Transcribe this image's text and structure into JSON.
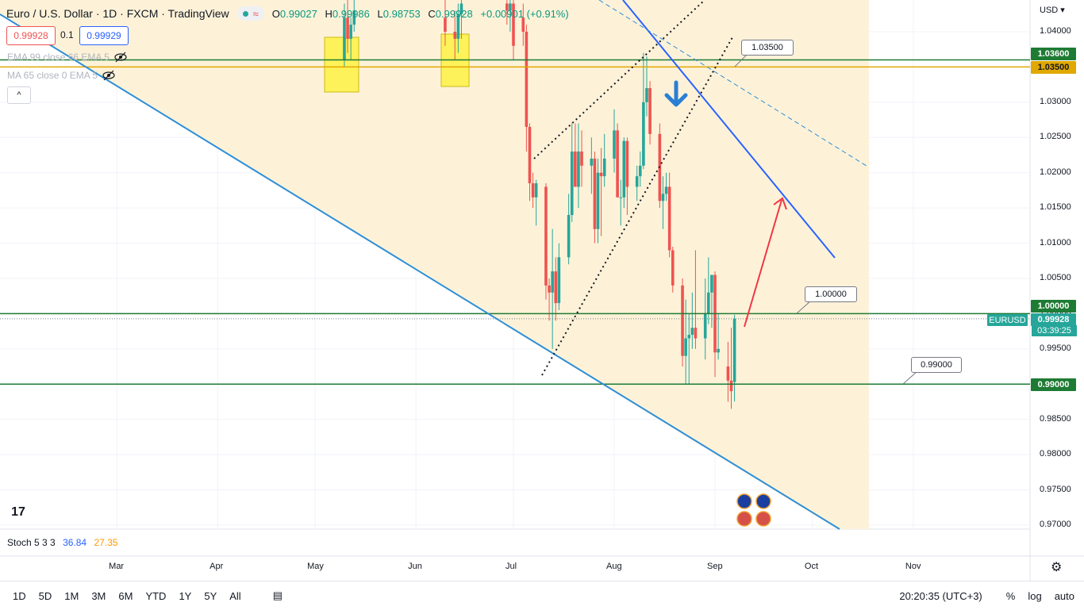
{
  "header": {
    "symbol": "Euro / U.S. Dollar · 1D · FXCM · TradingView",
    "wave_icon": "≈",
    "ohlc": {
      "o_label": "O",
      "o": "0.99027",
      "h_label": "H",
      "h": "0.99986",
      "l_label": "L",
      "l": "0.98753",
      "c_label": "C",
      "c": "0.99928",
      "change": "+0.00901 (+0.91%)"
    },
    "bid": "0.99928",
    "spread": "0.1",
    "ask": "0.99929"
  },
  "indicators": {
    "ema": "EMA 99 close 66 EMA 5",
    "ma": "MA 65 close 0 EMA 5",
    "stoch_label": "Stoch 5 3 3",
    "stoch_k": "36.84",
    "stoch_d": "27.35"
  },
  "colors": {
    "up": "#26a69a",
    "down": "#ef5350",
    "zone": "#fdf1d6",
    "blue_line": "#2e8fd6",
    "green_level": "#1e7b34",
    "gold_level": "#e0a800",
    "yellow_box": "#fff34d",
    "red_arrow": "#f23645"
  },
  "axis": {
    "currency": "USD",
    "time_labels": [
      "Mar",
      "Apr",
      "May",
      "Jun",
      "Jul",
      "Aug",
      "Sep",
      "Oct",
      "Nov"
    ],
    "price_labels": [
      "1.04000",
      "1.03500",
      "1.03000",
      "1.02500",
      "1.02000",
      "1.01500",
      "1.01000",
      "1.00500",
      "1.00000",
      "0.99500",
      "0.99000",
      "0.98500",
      "0.98000",
      "0.97500",
      "0.97000"
    ]
  },
  "price_tags": {
    "level_1036": "1.03600",
    "level_1035": "1.03500",
    "level_1000": "1.00000",
    "current": "0.99928",
    "level_099": "0.99000",
    "symbol_tag": "EURUSD",
    "countdown": "03:39:25"
  },
  "callouts": {
    "c1": "1.03500",
    "c2": "1.00000",
    "c3": "0.99000"
  },
  "bottom": {
    "timeframes": [
      "1D",
      "5D",
      "1M",
      "3M",
      "6M",
      "YTD",
      "1Y",
      "5Y",
      "All"
    ],
    "clock": "20:20:35 (UTC+3)",
    "pct": "%",
    "log": "log",
    "auto": "auto"
  },
  "chart_data": {
    "type": "candlestick",
    "title": "Euro / U.S. Dollar · 1D · FXCM · TradingView",
    "ylim": [
      0.97,
      1.042
    ],
    "candles": [
      {
        "t": "2022-05-10",
        "o": 1.036,
        "h": 1.044,
        "l": 1.035,
        "c": 1.042
      },
      {
        "t": "2022-05-11",
        "o": 1.042,
        "h": 1.0445,
        "l": 1.037,
        "c": 1.039
      },
      {
        "t": "2022-05-12",
        "o": 1.039,
        "h": 1.042,
        "l": 1.036,
        "c": 1.041
      },
      {
        "t": "2022-05-13",
        "o": 1.041,
        "h": 1.045,
        "l": 1.04,
        "c": 1.043
      },
      {
        "t": "2022-06-10",
        "o": 1.042,
        "h": 1.045,
        "l": 1.038,
        "c": 1.04
      },
      {
        "t": "2022-06-13",
        "o": 1.04,
        "h": 1.043,
        "l": 1.036,
        "c": 1.039
      },
      {
        "t": "2022-06-14",
        "o": 1.039,
        "h": 1.044,
        "l": 1.037,
        "c": 1.0425
      },
      {
        "t": "2022-06-15",
        "o": 1.0425,
        "h": 1.045,
        "l": 1.039,
        "c": 1.044
      },
      {
        "t": "2022-06-29",
        "o": 1.044,
        "h": 1.045,
        "l": 1.041,
        "c": 1.043
      },
      {
        "t": "2022-06-30",
        "o": 1.043,
        "h": 1.045,
        "l": 1.04,
        "c": 1.044
      },
      {
        "t": "2022-07-01",
        "o": 1.044,
        "h": 1.045,
        "l": 1.036,
        "c": 1.038
      },
      {
        "t": "2022-07-04",
        "o": 1.042,
        "h": 1.044,
        "l": 1.038,
        "c": 1.04
      },
      {
        "t": "2022-07-05",
        "o": 1.04,
        "h": 1.041,
        "l": 1.023,
        "c": 1.0265
      },
      {
        "t": "2022-07-06",
        "o": 1.0265,
        "h": 1.027,
        "l": 1.016,
        "c": 1.0185
      },
      {
        "t": "2022-07-07",
        "o": 1.0185,
        "h": 1.02,
        "l": 1.015,
        "c": 1.0165
      },
      {
        "t": "2022-07-08",
        "o": 1.0165,
        "h": 1.019,
        "l": 1.0125,
        "c": 1.0185
      },
      {
        "t": "2022-07-11",
        "o": 1.018,
        "h": 1.0185,
        "l": 1.002,
        "c": 1.004
      },
      {
        "t": "2022-07-12",
        "o": 1.004,
        "h": 1.005,
        "l": 0.999,
        "c": 1.003
      },
      {
        "t": "2022-07-13",
        "o": 1.003,
        "h": 1.012,
        "l": 0.995,
        "c": 1.006
      },
      {
        "t": "2022-07-14",
        "o": 1.006,
        "h": 1.008,
        "l": 0.999,
        "c": 1.0015
      },
      {
        "t": "2022-07-15",
        "o": 1.0015,
        "h": 1.01,
        "l": 1.0005,
        "c": 1.008
      },
      {
        "t": "2022-07-18",
        "o": 1.008,
        "h": 1.017,
        "l": 1.007,
        "c": 1.014
      },
      {
        "t": "2022-07-19",
        "o": 1.014,
        "h": 1.027,
        "l": 1.013,
        "c": 1.023
      },
      {
        "t": "2022-07-20",
        "o": 1.023,
        "h": 1.027,
        "l": 1.018,
        "c": 1.018
      },
      {
        "t": "2022-07-21",
        "o": 1.018,
        "h": 1.027,
        "l": 1.015,
        "c": 1.023
      },
      {
        "t": "2022-07-22",
        "o": 1.023,
        "h": 1.026,
        "l": 1.018,
        "c": 1.021
      },
      {
        "t": "2022-07-25",
        "o": 1.021,
        "h": 1.025,
        "l": 1.017,
        "c": 1.022
      },
      {
        "t": "2022-07-26",
        "o": 1.022,
        "h": 1.023,
        "l": 1.01,
        "c": 1.012
      },
      {
        "t": "2022-07-27",
        "o": 1.012,
        "h": 1.022,
        "l": 1.01,
        "c": 1.02
      },
      {
        "t": "2022-07-28",
        "o": 1.02,
        "h": 1.0235,
        "l": 1.011,
        "c": 1.0195
      },
      {
        "t": "2022-07-29",
        "o": 1.0195,
        "h": 1.0255,
        "l": 1.018,
        "c": 1.022
      },
      {
        "t": "2022-08-01",
        "o": 1.022,
        "h": 1.029,
        "l": 1.02,
        "c": 1.026
      },
      {
        "t": "2022-08-02",
        "o": 1.026,
        "h": 1.027,
        "l": 1.0165,
        "c": 1.0165
      },
      {
        "t": "2022-08-03",
        "o": 1.0165,
        "h": 1.019,
        "l": 1.0125,
        "c": 1.0165
      },
      {
        "t": "2022-08-04",
        "o": 1.0165,
        "h": 1.025,
        "l": 1.015,
        "c": 1.0245
      },
      {
        "t": "2022-08-05",
        "o": 1.0245,
        "h": 1.025,
        "l": 1.014,
        "c": 1.018
      },
      {
        "t": "2022-08-08",
        "o": 1.018,
        "h": 1.021,
        "l": 1.016,
        "c": 1.0195
      },
      {
        "t": "2022-08-09",
        "o": 1.0195,
        "h": 1.023,
        "l": 1.018,
        "c": 1.021
      },
      {
        "t": "2022-08-10",
        "o": 1.021,
        "h": 1.037,
        "l": 1.0205,
        "c": 1.03
      },
      {
        "t": "2022-08-11",
        "o": 1.03,
        "h": 1.0365,
        "l": 1.028,
        "c": 1.032
      },
      {
        "t": "2022-08-12",
        "o": 1.032,
        "h": 1.033,
        "l": 1.024,
        "c": 1.0255
      },
      {
        "t": "2022-08-15",
        "o": 1.0255,
        "h": 1.027,
        "l": 1.015,
        "c": 1.016
      },
      {
        "t": "2022-08-16",
        "o": 1.016,
        "h": 1.0195,
        "l": 1.012,
        "c": 1.017
      },
      {
        "t": "2022-08-17",
        "o": 1.017,
        "h": 1.02,
        "l": 1.016,
        "c": 1.018
      },
      {
        "t": "2022-08-18",
        "o": 1.018,
        "h": 1.02,
        "l": 1.008,
        "c": 1.009
      },
      {
        "t": "2022-08-19",
        "o": 1.009,
        "h": 1.0095,
        "l": 1.003,
        "c": 1.004
      },
      {
        "t": "2022-08-22",
        "o": 1.004,
        "h": 1.005,
        "l": 0.9925,
        "c": 0.994
      },
      {
        "t": "2022-08-23",
        "o": 0.994,
        "h": 1.002,
        "l": 0.99,
        "c": 0.9965
      },
      {
        "t": "2022-08-24",
        "o": 0.9965,
        "h": 1.0,
        "l": 0.99,
        "c": 0.997
      },
      {
        "t": "2022-08-25",
        "o": 0.997,
        "h": 1.003,
        "l": 0.995,
        "c": 0.998
      },
      {
        "t": "2022-08-26",
        "o": 0.998,
        "h": 1.009,
        "l": 0.995,
        "c": 0.9965
      },
      {
        "t": "2022-08-29",
        "o": 0.9965,
        "h": 1.005,
        "l": 0.9935,
        "c": 1.0
      },
      {
        "t": "2022-08-30",
        "o": 1.0,
        "h": 1.008,
        "l": 0.9985,
        "c": 1.003
      },
      {
        "t": "2022-08-31",
        "o": 1.003,
        "h": 1.0055,
        "l": 0.998,
        "c": 1.0055
      },
      {
        "t": "2022-09-01",
        "o": 1.0055,
        "h": 1.006,
        "l": 0.991,
        "c": 0.9945
      },
      {
        "t": "2022-09-02",
        "o": 0.9945,
        "h": 1.0,
        "l": 0.9935,
        "c": 0.995
      },
      {
        "t": "2022-09-05",
        "o": 0.9925,
        "h": 0.996,
        "l": 0.9875,
        "c": 0.9905
      },
      {
        "t": "2022-09-06",
        "o": 0.9905,
        "h": 0.998,
        "l": 0.9865,
        "c": 0.989
      },
      {
        "t": "2022-09-07",
        "o": 0.9903,
        "h": 0.99986,
        "l": 0.98753,
        "c": 0.99928
      }
    ],
    "levels": [
      1.036,
      1.035,
      1.0,
      0.99
    ]
  }
}
